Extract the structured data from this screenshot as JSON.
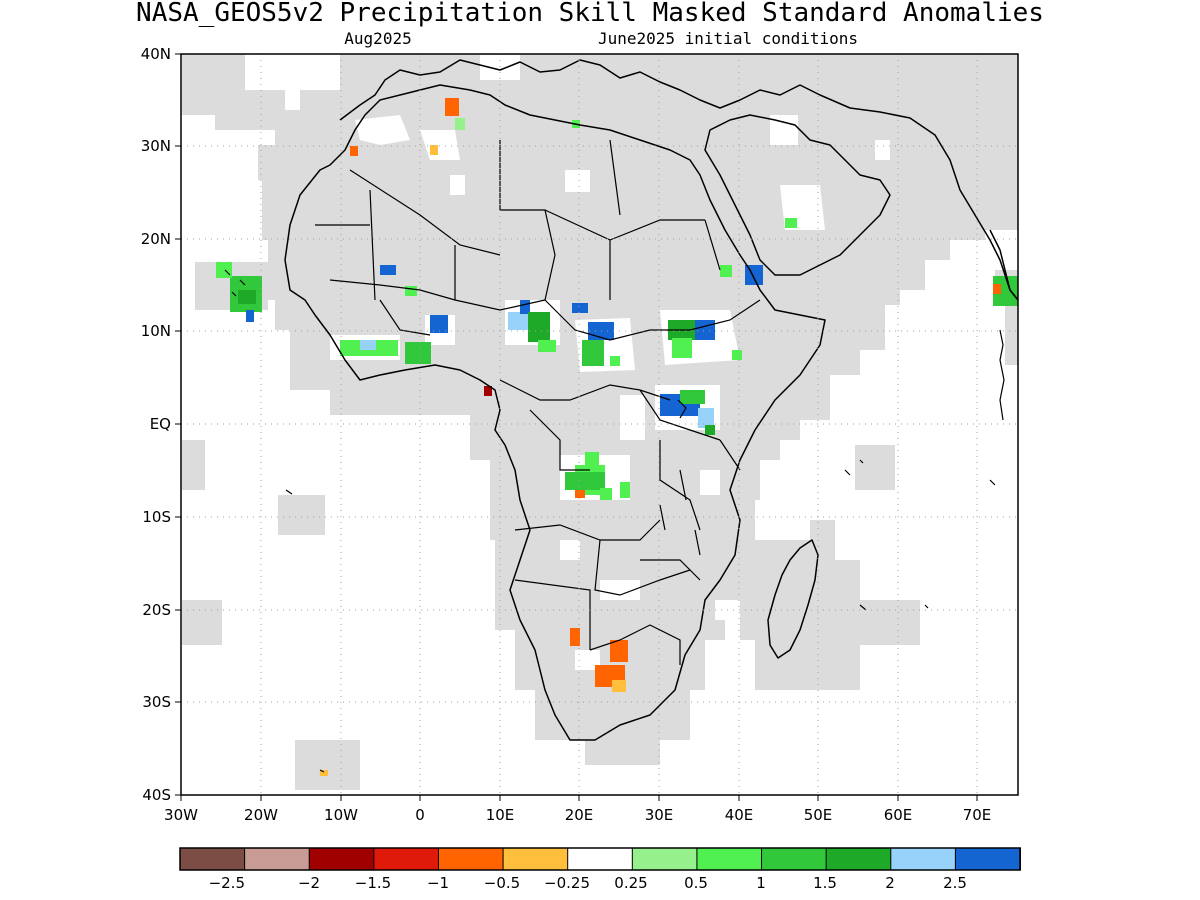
{
  "title": "NASA_GEOS5v2 Precipitation Skill Masked Standard Anomalies",
  "subtitle_left": "Aug2025",
  "subtitle_right": "June2025 initial conditions",
  "y_ticks": [
    "40N",
    "30N",
    "20N",
    "10N",
    "EQ",
    "10S",
    "20S",
    "30S",
    "40S"
  ],
  "x_ticks": [
    "30W",
    "20W",
    "10W",
    "0",
    "10E",
    "20E",
    "30E",
    "40E",
    "50E",
    "60E",
    "70E"
  ],
  "colorbar": {
    "colors": [
      "#7b4d45",
      "#c89b94",
      "#a00000",
      "#e01a0a",
      "#ff6400",
      "#ffbe3c",
      "#ffffff",
      "#96f08c",
      "#50f050",
      "#32c83c",
      "#1eaa28",
      "#96d2fa",
      "#1464d2"
    ],
    "labels": [
      "−2.5",
      "−2",
      "−1.5",
      "−1",
      "−0.5",
      "−0.25",
      "0.25",
      "0.5",
      "1",
      "1.5",
      "2",
      "2.5"
    ]
  },
  "colors": {
    "mask_gray": "#dcdcdc",
    "land_outline": "#000000",
    "grid": "#a0a0a0"
  }
}
